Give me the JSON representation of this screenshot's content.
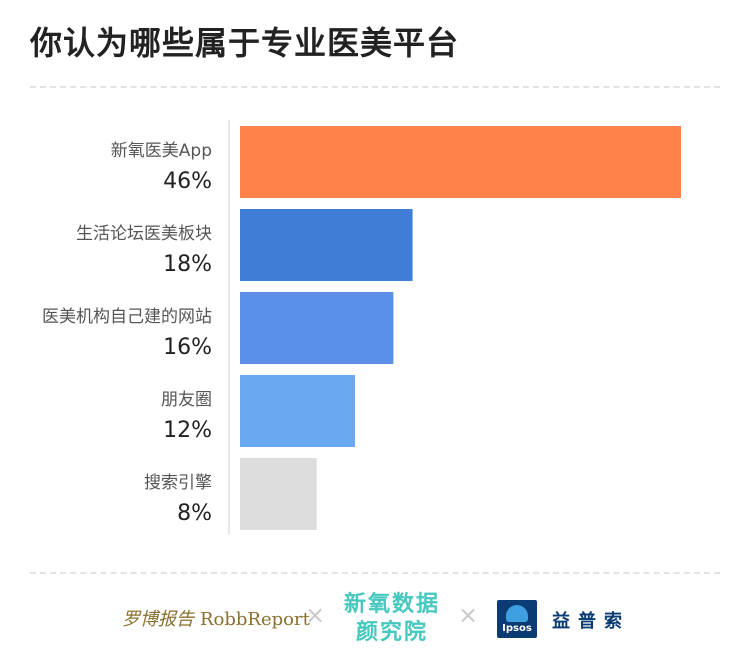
{
  "title": "你认为哪些属于专业医美平台",
  "chart_data": {
    "type": "bar",
    "orientation": "horizontal",
    "categories": [
      "新氧医美App",
      "生活论坛医美板块",
      "医美机构自己建的网站",
      "朋友圈",
      "搜索引擎"
    ],
    "values": [
      46,
      18,
      16,
      12,
      8
    ],
    "value_labels": [
      "46%",
      "18%",
      "16%",
      "12%",
      "8%"
    ],
    "colors": [
      "#fe824a",
      "#3f7dd6",
      "#5b90e9",
      "#6aa8f2",
      "#dcdcdc"
    ],
    "xlim": [
      0,
      46
    ],
    "grid": false
  },
  "footer": {
    "robb_cn": "罗博报告",
    "robb_en": "RobbReport",
    "cross_1": "×",
    "xinyang_line1": "新氧数据",
    "xinyang_line2": "颜究院",
    "cross_2": "×",
    "ipsos_logo_text": "Ipsos",
    "ipsos_cn": "益普索"
  }
}
